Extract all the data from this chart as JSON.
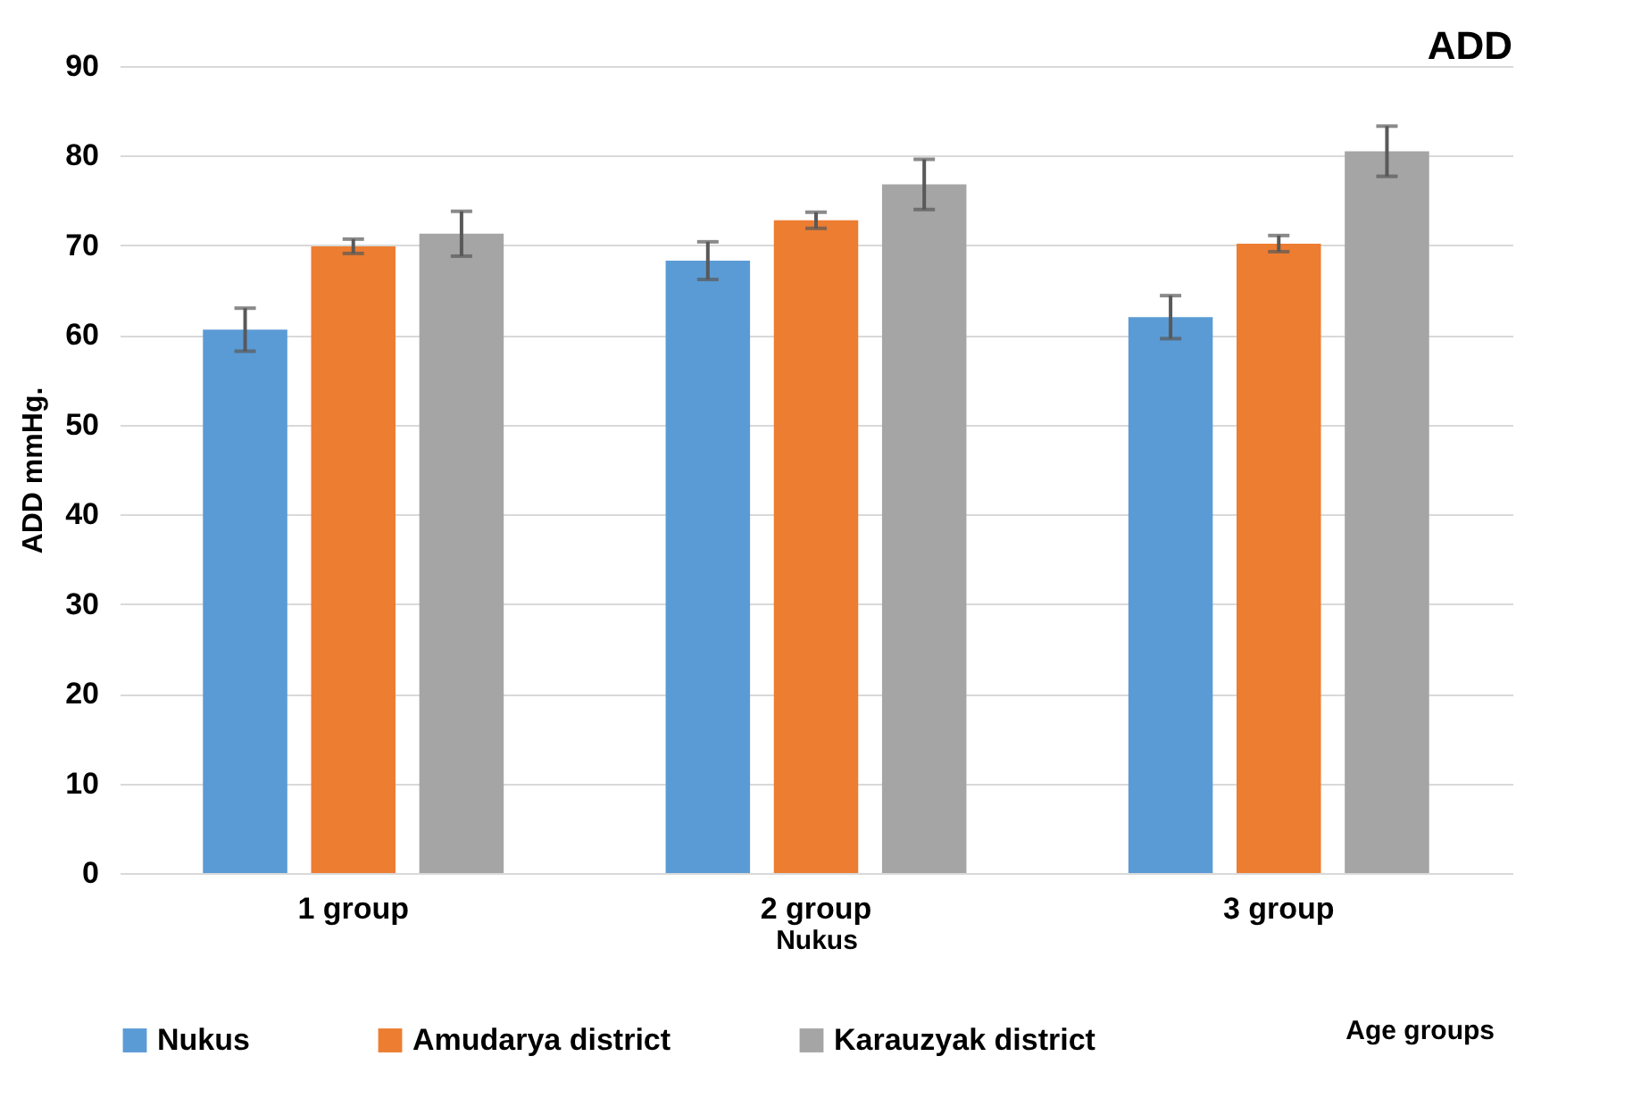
{
  "chart_data": {
    "type": "bar",
    "title": "ADD",
    "xlabel": "Nukus",
    "ylabel": "ADD mmHg.",
    "categories": [
      "1 group",
      "2 group",
      "3 group"
    ],
    "series": [
      {
        "name": "Nukus",
        "color": "#5b9bd5",
        "values": [
          60.6,
          68.3,
          62.0
        ],
        "errors": [
          2.4,
          2.1,
          2.4
        ]
      },
      {
        "name": "Amudarya district",
        "color": "#ed7d31",
        "values": [
          69.9,
          72.8,
          70.2
        ],
        "errors": [
          0.8,
          0.9,
          0.9
        ]
      },
      {
        "name": "Karauzyak district",
        "color": "#a5a5a5",
        "values": [
          71.3,
          76.8,
          80.5
        ],
        "errors": [
          2.5,
          2.8,
          2.8
        ]
      }
    ],
    "ylim": [
      0,
      90
    ],
    "yticks": [
      0,
      10,
      20,
      30,
      40,
      50,
      60,
      70,
      80,
      90
    ],
    "grid": "y",
    "legend": "bottom",
    "annotations": [
      "Age groups"
    ]
  }
}
